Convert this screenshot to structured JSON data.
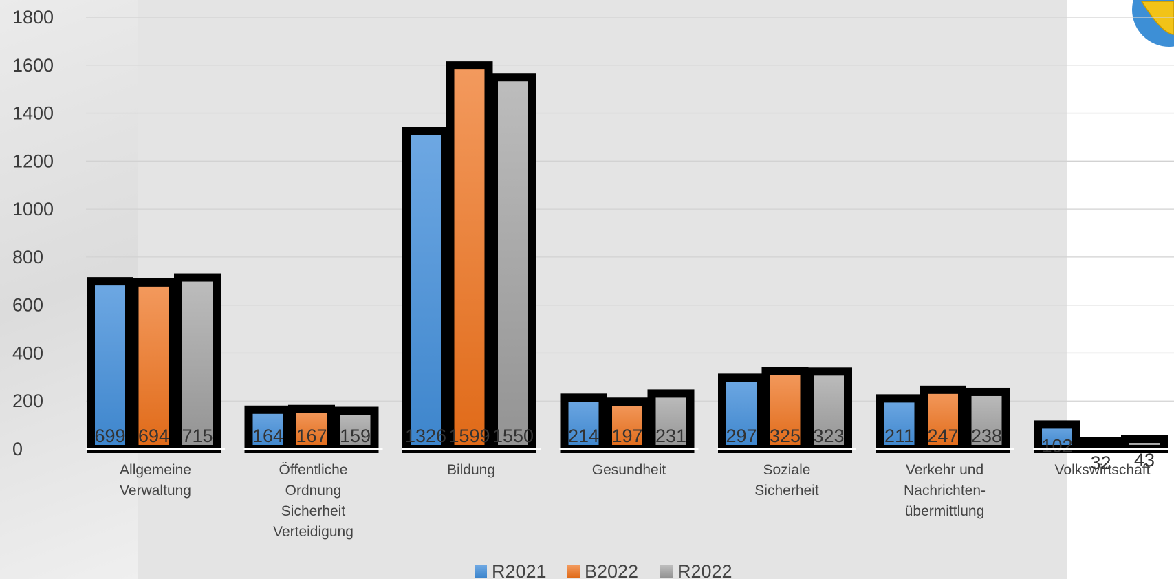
{
  "chart_data": {
    "type": "bar",
    "title": "",
    "xlabel": "",
    "ylabel": "",
    "ylim": [
      0,
      1800
    ],
    "yticks": [
      0,
      200,
      400,
      600,
      800,
      1000,
      1200,
      1400,
      1600,
      1800
    ],
    "grid": true,
    "legend_position": "bottom",
    "categories": [
      [
        "Allgemeine",
        "Verwaltung"
      ],
      [
        "Öffentliche",
        "Ordnung",
        "Sicherheit",
        "Verteidigung"
      ],
      [
        "Bildung"
      ],
      [
        "Gesundheit"
      ],
      [
        "Soziale",
        "Sicherheit"
      ],
      [
        "Verkehr und",
        "Nachrichten-",
        "übermittlung"
      ],
      [
        "Volkswirtschaft"
      ]
    ],
    "series": [
      {
        "name": "R2021",
        "color": "#4a90d9",
        "values": [
          699,
          164,
          1326,
          214,
          297,
          211,
          102
        ]
      },
      {
        "name": "B2022",
        "color": "#ed7d31",
        "values": [
          694,
          167,
          1599,
          197,
          325,
          247,
          32
        ]
      },
      {
        "name": "R2022",
        "color": "#a5a5a5",
        "values": [
          715,
          159,
          1550,
          231,
          323,
          238,
          43
        ]
      }
    ]
  }
}
